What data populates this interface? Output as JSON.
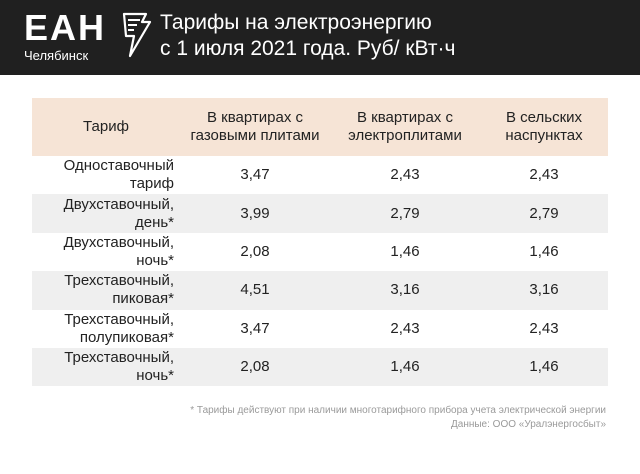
{
  "header": {
    "logo_text": "ЕАН",
    "logo_city": "Челябинск",
    "title_line1": "Тарифы на электроэнергию",
    "title_line2": "с 1 июля 2021 года. Руб/ кВт·ч"
  },
  "table": {
    "columns": [
      "Тариф",
      "В квартирах с\nгазовыми плитами",
      "В квартирах с\nэлектроплитами",
      "В сельских\nнаспунктах"
    ],
    "rows": [
      [
        "Одноставочный\nтариф",
        "3,47",
        "2,43",
        "2,43"
      ],
      [
        "Двухставочный,\nдень*",
        "3,99",
        "2,79",
        "2,79"
      ],
      [
        "Двухставочный,\nночь*",
        "2,08",
        "1,46",
        "1,46"
      ],
      [
        "Трехставочный,\nпиковая*",
        "4,51",
        "3,16",
        "3,16"
      ],
      [
        "Трехставочный,\nполупиковая*",
        "3,47",
        "2,43",
        "2,43"
      ],
      [
        "Трехставочный,\nночь*",
        "2,08",
        "1,46",
        "1,46"
      ]
    ]
  },
  "footnote": {
    "line1": "* Тарифы действуют при наличии многотарифного прибора учета электрической энергии",
    "line2": "Данные:  ООО «Уралэнергосбыт»"
  },
  "colors": {
    "header_bg": "#202020",
    "table_head_bg": "#f6e4d6",
    "row_shade_bg": "#efefef"
  }
}
